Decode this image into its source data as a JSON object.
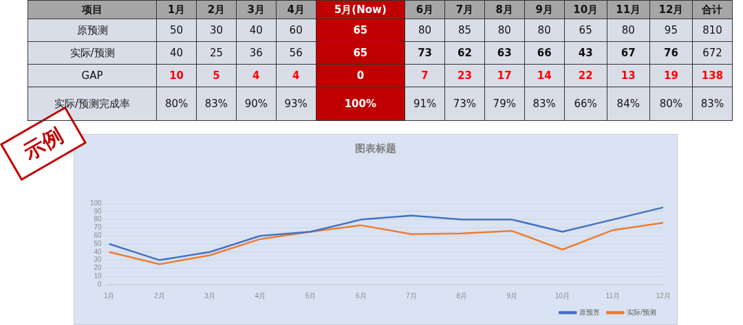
{
  "chart_data": [
    {
      "type": "heatmap",
      "ylabel": "项目",
      "categories": [
        "1月",
        "2月",
        "3月",
        "4月",
        "5月(Now)",
        "6月",
        "7月",
        "8月",
        "9月",
        "10月",
        "11月",
        "12月",
        "合计"
      ],
      "y_categories": [
        "原预测",
        "实际/预测",
        "GAP",
        "实际/预测完成率"
      ],
      "cells": [
        [
          null,
          null,
          null,
          null,
          null,
          null,
          null,
          null,
          null,
          null,
          null,
          null,
          null
        ],
        [
          null,
          null,
          null,
          null,
          null,
          null,
          null,
          null,
          null,
          null,
          null,
          null,
          null
        ],
        [
          null,
          null,
          null,
          null,
          null,
          null,
          null,
          null,
          null,
          null,
          null,
          null,
          null
        ],
        [
          null,
          null,
          null,
          null,
          null,
          null,
          null,
          null,
          null,
          null,
          null,
          null,
          null
        ]
      ],
      "cell_labels": [
        [
          "50",
          "30",
          "40",
          "60",
          "65",
          "80",
          "85",
          "80",
          "80",
          "65",
          "80",
          "95",
          "810"
        ],
        [
          "40",
          "25",
          "36",
          "56",
          "65",
          "73",
          "62",
          "63",
          "66",
          "43",
          "67",
          "76",
          "672"
        ],
        [
          "10",
          "5",
          "4",
          "4",
          "0",
          "7",
          "23",
          "17",
          "14",
          "22",
          "13",
          "19",
          "138"
        ],
        [
          "80%",
          "83%",
          "90%",
          "93%",
          "100%",
          "91%",
          "73%",
          "79%",
          "83%",
          "66%",
          "84%",
          "80%",
          "83%"
        ]
      ]
    },
    {
      "type": "line",
      "title": "图表标题",
      "categories": [
        "1月",
        "2月",
        "3月",
        "4月",
        "5月",
        "6月",
        "7月",
        "8月",
        "9月",
        "10月",
        "11月",
        "12月"
      ],
      "series": [
        {
          "name": "原预算",
          "color": "#4472c4",
          "values": [
            50,
            30,
            40,
            60,
            65,
            80,
            85,
            80,
            80,
            65,
            80,
            95
          ]
        },
        {
          "name": "实际/预测",
          "color": "#ed7d31",
          "values": [
            40,
            25,
            36,
            56,
            65,
            73,
            62,
            63,
            66,
            43,
            67,
            76
          ]
        }
      ],
      "ylim": [
        0,
        100
      ],
      "yticks": [
        0,
        10,
        20,
        30,
        40,
        50,
        60,
        70,
        80,
        90,
        100
      ],
      "grid": "y",
      "legend": "bottom right",
      "marker": "none",
      "line_style": "solid",
      "annotations": [
        "示例"
      ]
    }
  ]
}
